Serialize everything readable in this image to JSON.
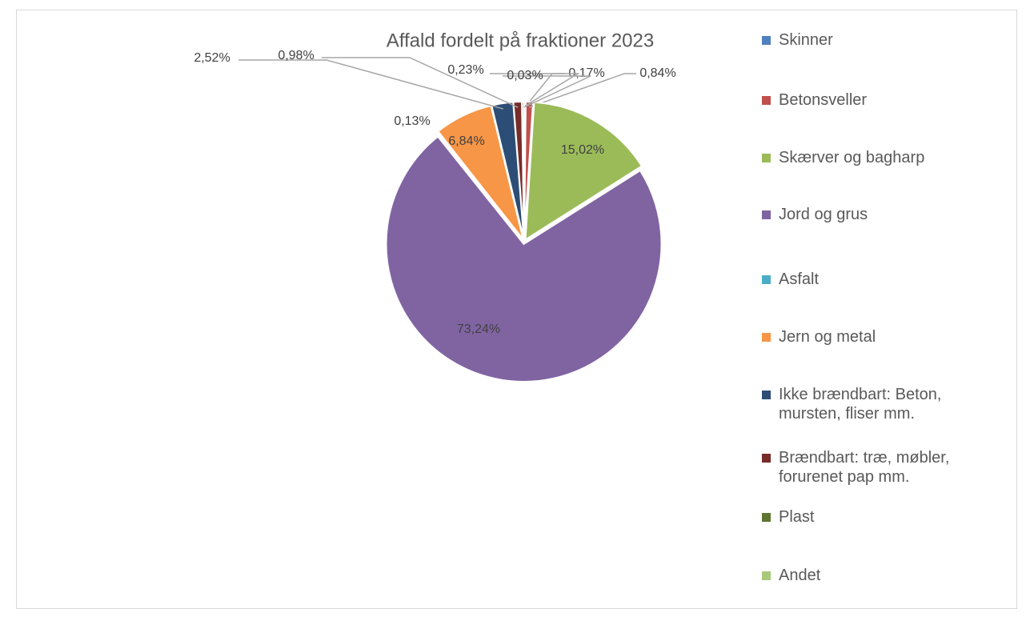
{
  "chart_data": {
    "type": "pie",
    "title": "Affald fordelt på fraktioner 2023",
    "categories": [
      "Skinner",
      "Betonsveller",
      "Skærver og bagharp",
      "Jord og grus",
      "Asfalt",
      "Jern og metal",
      "Ikke brændbart: Beton, mursten, fliser mm.",
      "Brændbart: træ, møbler, forurenet pap mm.",
      "Plast",
      "Andet"
    ],
    "values": [
      0.17,
      0.84,
      15.02,
      73.24,
      0.13,
      6.84,
      2.52,
      0.98,
      0.23,
      0.03
    ],
    "value_labels": [
      "0,17%",
      "0,84%",
      "15,02%",
      "73,24%",
      "0,13%",
      "6,84%",
      "2,52%",
      "0,98%",
      "0,23%",
      "0,03%"
    ],
    "colors": [
      "#4f81bd",
      "#c0504d",
      "#9bbb59",
      "#8064a2",
      "#4bacc6",
      "#f79646",
      "#2c4d75",
      "#772c2a",
      "#5f7530",
      "#a9c97a"
    ],
    "legend": "right"
  }
}
